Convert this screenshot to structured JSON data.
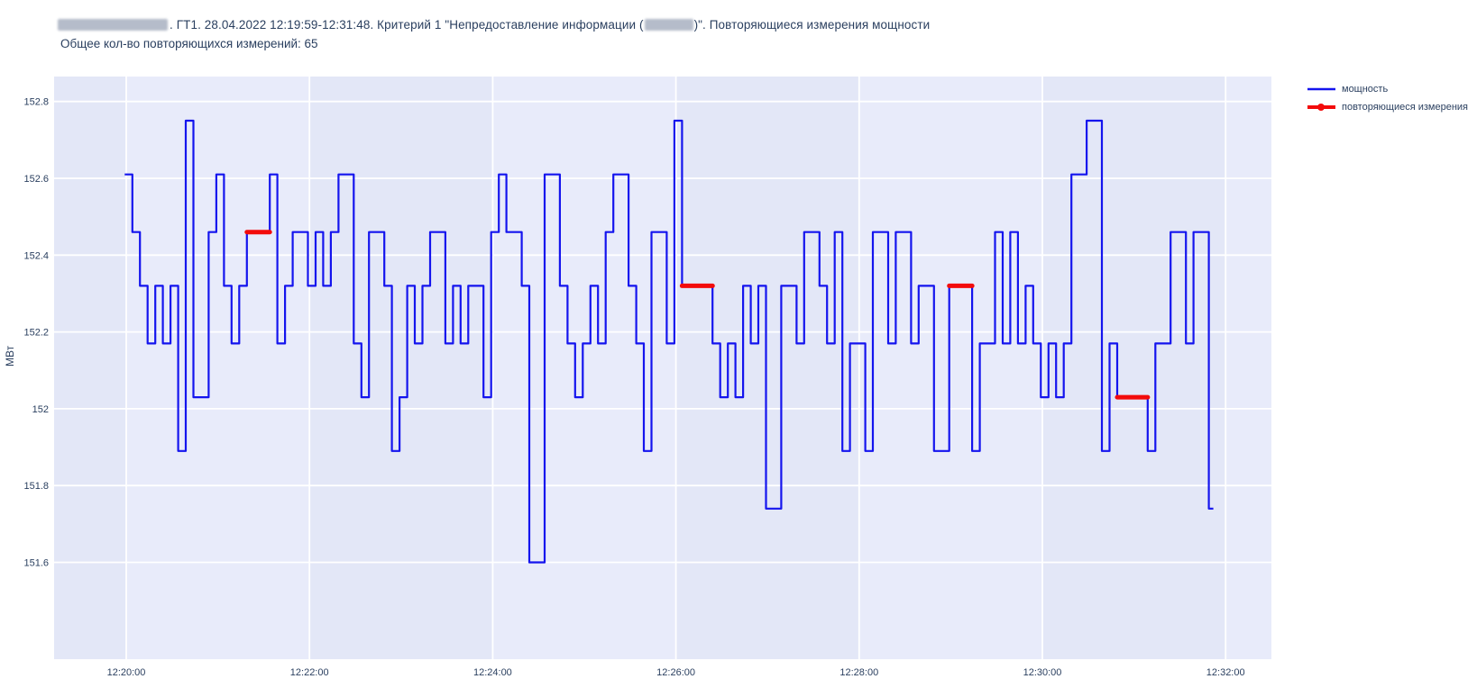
{
  "title": {
    "part1": ". ГТ1. 28.04.2022 12:19:59-12:31:48. Критерий 1 \"Непредоставление информации (",
    "part2": ")\". Повторяющиеся измерения мощности",
    "subtitle": "Общее кол-во повторяющихся измерений: 65",
    "repeated_total": 65
  },
  "legend": {
    "items": [
      {
        "label": "мощность",
        "color": "#1414ee",
        "type": "line"
      },
      {
        "label": "повторяющиеся измерения",
        "color": "#f30b0b",
        "type": "line-dot"
      }
    ]
  },
  "colors": {
    "line": "#1414ee",
    "repeat": "#f30b0b",
    "text": "#2a3f5f",
    "plot_bg_a": "#e3e7f7",
    "plot_bg_b": "#e8ebfa",
    "gridline": "#ffffff"
  },
  "chart_data": {
    "type": "line",
    "step": "hv",
    "title": "ГТ1. 28.04.2022 12:19:59-12:31:48. Критерий 1 \"Непредоставление информации\". Повторяющиеся измерения мощности",
    "xlabel": "",
    "ylabel": "МВт",
    "x_start": "12:19:59",
    "x_end": "12:31:48",
    "x_interval_seconds": 5,
    "x_offset_start_seconds": -1,
    "x_tick_seconds": [
      0,
      120,
      240,
      360,
      480,
      600,
      720
    ],
    "x_tick_labels": [
      "12:20:00",
      "12:22:00",
      "12:24:00",
      "12:26:00",
      "12:28:00",
      "12:30:00",
      "12:32:00"
    ],
    "y_ticks": [
      152.8,
      152.6,
      152.4,
      152.2,
      152.0,
      151.8,
      151.6
    ],
    "y_tick_labels": [
      "152.8",
      "152.6",
      "152.4",
      "152.2",
      "152",
      "151.8",
      "151.6"
    ],
    "ylim": [
      151.31,
      152.87
    ],
    "grid": true,
    "legend_position": "top-right",
    "values": [
      152.61,
      152.46,
      152.32,
      152.17,
      152.32,
      152.17,
      152.32,
      151.89,
      152.75,
      152.03,
      152.03,
      152.46,
      152.61,
      152.32,
      152.17,
      152.32,
      152.46,
      152.46,
      152.46,
      152.61,
      152.17,
      152.32,
      152.46,
      152.46,
      152.32,
      152.46,
      152.32,
      152.46,
      152.61,
      152.61,
      152.17,
      152.03,
      152.46,
      152.46,
      152.32,
      151.89,
      152.03,
      152.32,
      152.17,
      152.32,
      152.46,
      152.46,
      152.17,
      152.32,
      152.17,
      152.32,
      152.32,
      152.03,
      152.46,
      152.61,
      152.46,
      152.46,
      152.32,
      151.6,
      151.6,
      152.61,
      152.61,
      152.32,
      152.17,
      152.03,
      152.17,
      152.32,
      152.17,
      152.46,
      152.61,
      152.61,
      152.32,
      152.17,
      151.89,
      152.46,
      152.46,
      152.17,
      152.75,
      152.32,
      152.32,
      152.32,
      152.32,
      152.17,
      152.03,
      152.17,
      152.03,
      152.32,
      152.17,
      152.32,
      151.74,
      151.74,
      152.32,
      152.32,
      152.17,
      152.46,
      152.46,
      152.32,
      152.17,
      152.46,
      151.89,
      152.17,
      152.17,
      151.89,
      152.46,
      152.46,
      152.17,
      152.46,
      152.46,
      152.17,
      152.32,
      152.32,
      151.89,
      151.89,
      152.32,
      152.32,
      152.32,
      151.89,
      152.17,
      152.17,
      152.46,
      152.17,
      152.46,
      152.17,
      152.32,
      152.17,
      152.03,
      152.17,
      152.03,
      152.17,
      152.61,
      152.61,
      152.75,
      152.75,
      151.89,
      152.17,
      152.03,
      152.03,
      152.03,
      152.03,
      151.89,
      152.17,
      152.17,
      152.46,
      152.46,
      152.17,
      152.46,
      152.46,
      151.74
    ],
    "repeated_segments": [
      {
        "start_index": 16,
        "end_index": 18,
        "value": 152.46
      },
      {
        "start_index": 73,
        "end_index": 76,
        "value": 152.32
      },
      {
        "start_index": 108,
        "end_index": 110,
        "value": 152.32
      },
      {
        "start_index": 130,
        "end_index": 133,
        "value": 152.03
      }
    ]
  }
}
